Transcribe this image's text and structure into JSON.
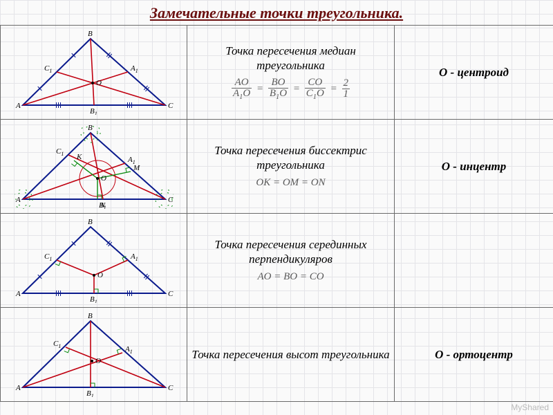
{
  "title": "Замечательные точки треугольника.",
  "colors": {
    "triangle_stroke": "#0a1a8c",
    "cevian_stroke": "#c00010",
    "perp_stroke": "#0a8a10",
    "bg": "#fafafa",
    "grid": "#e4e4e8",
    "title_color": "#6b0f0f"
  },
  "base_triangle": {
    "A": [
      12,
      108
    ],
    "B": [
      110,
      12
    ],
    "C": [
      218,
      108
    ]
  },
  "rows": [
    {
      "key": "centroid",
      "desc": "Точка пересечения медиан треугольника",
      "name": "O - центроид",
      "formula_html": "<span class='frac'><span class='num'>AO</span><span class='den'>A<span class=sub>1</span>O</span></span> = <span class='frac'><span class='num'>BO</span><span class='den'>B<span class=sub>1</span>O</span></span> = <span class='frac'><span class='num'>CO</span><span class='den'>C<span class=sub>1</span>O</span></span> = <span class='frac'><span class='num'>2</span><span class='den'>1</span></span>",
      "diagram": {
        "cevians": [
          [
            [
              12,
              108
            ],
            [
              164,
              60
            ]
          ],
          [
            [
              218,
              108
            ],
            [
              61,
              60
            ]
          ],
          [
            [
              110,
              12
            ],
            [
              115,
              108
            ]
          ]
        ],
        "midpoints": {
          "A1": [
            164,
            60
          ],
          "C1": [
            61,
            60
          ],
          "B1": [
            115,
            108
          ]
        },
        "O": [
          113,
          76
        ],
        "ticks": "midpoints"
      }
    },
    {
      "key": "incenter",
      "desc": "Точка пересечения биссектрис треугольника",
      "name": "O - инцентр",
      "formula_html": "OK = OM = ON",
      "diagram": {
        "cevians": [
          [
            [
              12,
              108
            ],
            [
              160,
              56
            ]
          ],
          [
            [
              218,
              108
            ],
            [
              78,
              44
            ]
          ],
          [
            [
              110,
              12
            ],
            [
              128,
              108
            ]
          ]
        ],
        "midpoints": {
          "A1": [
            160,
            56
          ],
          "C1": [
            78,
            44
          ],
          "B1": [
            128,
            108
          ]
        },
        "O": [
          120,
          78
        ],
        "incircle_r": 26,
        "perp_feet": {
          "K": [
            86,
            52
          ],
          "M": [
            168,
            68
          ],
          "N": [
            120,
            108
          ]
        },
        "angle_arcs": true
      }
    },
    {
      "key": "circumcenter",
      "desc": "Точка пересечения серединных перпендикуляров",
      "name": "",
      "formula_html": "AO = BO = CO",
      "diagram": {
        "perp_bisectors": true,
        "midpoints": {
          "A1": [
            164,
            60
          ],
          "C1": [
            61,
            60
          ],
          "B1": [
            115,
            108
          ]
        },
        "O": [
          115,
          82
        ],
        "ticks": "midpoints"
      }
    },
    {
      "key": "orthocenter",
      "desc": "Точка пересечения высот треугольника",
      "name": "O - ортоцентр",
      "formula_html": "",
      "diagram": {
        "altitudes": true,
        "feet": {
          "A1": [
            156,
            58
          ],
          "C1": [
            74,
            50
          ],
          "B1": [
            110,
            108
          ]
        },
        "O": [
          112,
          70
        ]
      }
    }
  ],
  "watermark": "MyShared"
}
